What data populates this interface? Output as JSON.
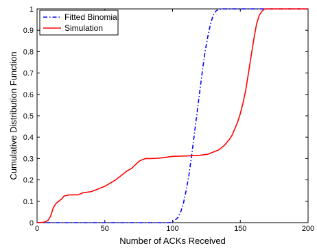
{
  "chart_data": {
    "type": "line",
    "xlabel": "Number of ACKs Received",
    "ylabel": "Cumulative Distribution Function",
    "xlim": [
      0,
      200
    ],
    "ylim": [
      0,
      1
    ],
    "x_ticks": [
      0,
      50,
      100,
      150,
      200
    ],
    "y_ticks": [
      0,
      0.1,
      0.2,
      0.3,
      0.4,
      0.5,
      0.6,
      0.7,
      0.8,
      0.9,
      1
    ],
    "x_tick_labels": [
      "0",
      "50",
      "100",
      "150",
      "200"
    ],
    "y_tick_labels": [
      "0",
      "0.1",
      "0.2",
      "0.3",
      "0.4",
      "0.5",
      "0.6",
      "0.7",
      "0.8",
      "0.9",
      "1"
    ],
    "grid": false,
    "legend_position": "top-left",
    "series": [
      {
        "name": "Fitted Binomial",
        "color": "#0000ff",
        "style": "dash-dot",
        "x": [
          0,
          98,
          100,
          102,
          104,
          106,
          108,
          110,
          112,
          114,
          116,
          118,
          120,
          122,
          124,
          126,
          128,
          130,
          132,
          134,
          136,
          200
        ],
        "y": [
          0,
          0,
          0.005,
          0.012,
          0.025,
          0.05,
          0.09,
          0.15,
          0.22,
          0.31,
          0.41,
          0.51,
          0.61,
          0.71,
          0.8,
          0.87,
          0.93,
          0.97,
          0.99,
          0.998,
          1,
          1
        ]
      },
      {
        "name": "Simulation",
        "color": "#ff0000",
        "style": "solid",
        "x": [
          0,
          5,
          8,
          10,
          12,
          14,
          16,
          18,
          20,
          24,
          30,
          34,
          40,
          46,
          50,
          54,
          58,
          62,
          66,
          70,
          74,
          76,
          78,
          80,
          84,
          90,
          100,
          110,
          120,
          126,
          130,
          134,
          138,
          140,
          142,
          144,
          146,
          148,
          150,
          152,
          154,
          156,
          158,
          160,
          162,
          164,
          166,
          168,
          170,
          175,
          200
        ],
        "y": [
          0,
          0.002,
          0.01,
          0.03,
          0.07,
          0.09,
          0.1,
          0.11,
          0.125,
          0.13,
          0.13,
          0.14,
          0.145,
          0.16,
          0.17,
          0.185,
          0.2,
          0.22,
          0.24,
          0.255,
          0.28,
          0.29,
          0.295,
          0.3,
          0.3,
          0.302,
          0.31,
          0.312,
          0.315,
          0.32,
          0.33,
          0.34,
          0.36,
          0.375,
          0.39,
          0.41,
          0.44,
          0.47,
          0.51,
          0.56,
          0.62,
          0.7,
          0.78,
          0.86,
          0.93,
          0.97,
          0.99,
          1,
          1,
          1,
          1
        ]
      }
    ]
  }
}
